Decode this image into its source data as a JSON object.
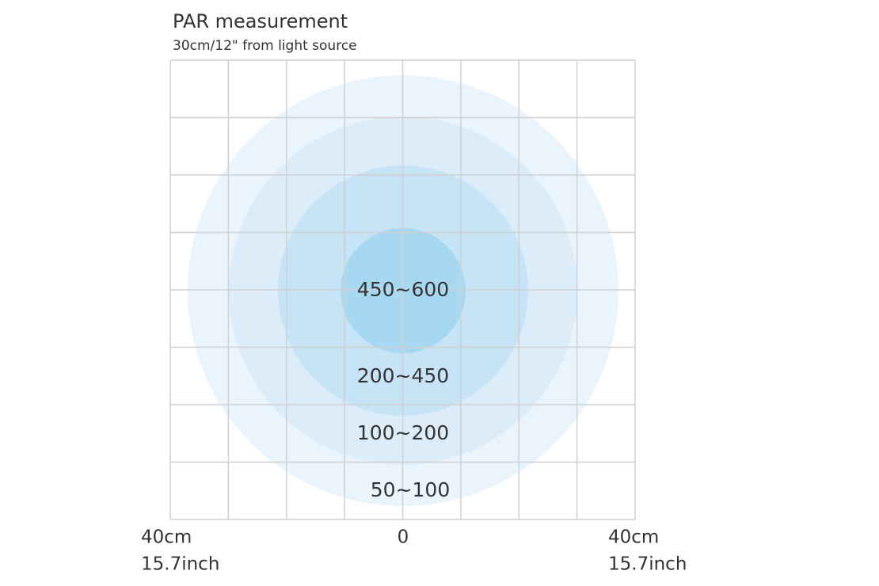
{
  "header": {
    "title": "PAR measurement",
    "subtitle": "30cm/12\" from light source"
  },
  "zones": [
    {
      "label": "450~600"
    },
    {
      "label": "200~450"
    },
    {
      "label": "100~200"
    },
    {
      "label": "50~100"
    }
  ],
  "axis": {
    "left": [
      "40cm",
      "15.7inch"
    ],
    "center": "0",
    "right": [
      "40cm",
      "15.7inch"
    ]
  }
}
